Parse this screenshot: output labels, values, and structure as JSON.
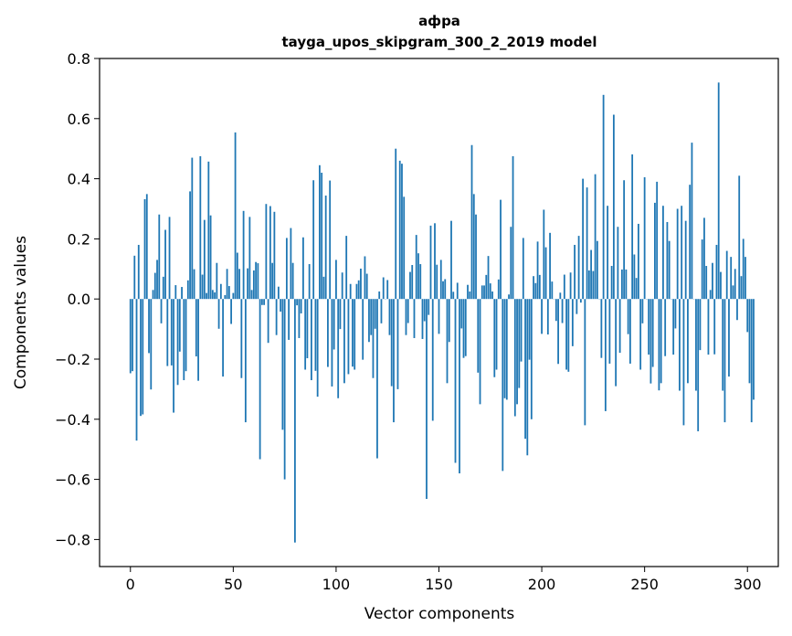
{
  "chart_data": {
    "type": "bar",
    "title": "афра",
    "subtitle": "tayga_upos_skipgram_300_2_2019 model",
    "xlabel": "Vector components",
    "ylabel": "Components values",
    "xlim": [
      -15,
      315
    ],
    "ylim": [
      -0.89,
      0.8
    ],
    "xticks": [
      0,
      50,
      100,
      150,
      200,
      250,
      300
    ],
    "xtick_labels": [
      "0",
      "50",
      "100",
      "150",
      "200",
      "250",
      "300"
    ],
    "yticks": [
      0.8,
      0.6,
      0.4,
      0.2,
      0.0,
      -0.2,
      -0.4,
      -0.6,
      -0.8
    ],
    "ytick_labels": [
      "0.8",
      "0.6",
      "0.4",
      "0.2",
      "0.0",
      "−0.2",
      "−0.4",
      "−0.6",
      "−0.8"
    ],
    "bar_color": "#1f77b4",
    "grid": false,
    "values": [
      -0.247,
      -0.24,
      0.144,
      -0.471,
      0.18,
      -0.389,
      -0.384,
      0.332,
      0.349,
      -0.18,
      -0.301,
      0.03,
      0.087,
      0.13,
      0.281,
      -0.081,
      0.074,
      0.23,
      -0.223,
      0.273,
      -0.221,
      -0.378,
      0.046,
      -0.286,
      -0.175,
      0.04,
      -0.27,
      -0.24,
      0.062,
      0.358,
      0.47,
      0.099,
      -0.191,
      -0.272,
      0.475,
      0.081,
      0.263,
      0.02,
      0.457,
      0.278,
      0.03,
      0.022,
      0.12,
      -0.099,
      0.05,
      -0.258,
      0.013,
      0.1,
      0.043,
      -0.083,
      0.02,
      0.554,
      0.154,
      0.1,
      -0.263,
      0.293,
      -0.41,
      0.102,
      0.273,
      0.03,
      0.095,
      0.123,
      0.119,
      -0.533,
      -0.02,
      -0.02,
      0.316,
      -0.146,
      0.309,
      0.12,
      0.29,
      -0.12,
      0.041,
      -0.042,
      -0.435,
      -0.6,
      0.203,
      -0.136,
      0.236,
      0.12,
      -0.81,
      -0.021,
      -0.13,
      -0.048,
      0.205,
      -0.235,
      -0.197,
      0.116,
      -0.27,
      0.395,
      -0.239,
      -0.325,
      0.445,
      0.42,
      0.074,
      0.344,
      -0.226,
      0.394,
      -0.291,
      -0.168,
      0.13,
      -0.33,
      -0.1,
      0.088,
      -0.28,
      0.21,
      -0.25,
      0.05,
      -0.225,
      -0.235,
      0.05,
      0.062,
      0.101,
      -0.202,
      0.142,
      0.084,
      -0.143,
      -0.12,
      -0.263,
      -0.099,
      -0.53,
      0.025,
      -0.081,
      0.072,
      0.0,
      0.063,
      -0.12,
      -0.29,
      -0.41,
      0.5,
      -0.3,
      0.46,
      0.45,
      0.34,
      -0.12,
      -0.08,
      0.09,
      0.113,
      -0.13,
      0.213,
      0.152,
      0.116,
      -0.133,
      -0.074,
      -0.665,
      -0.053,
      0.244,
      -0.405,
      0.252,
      0.114,
      -0.116,
      0.13,
      0.059,
      0.066,
      -0.28,
      -0.143,
      0.26,
      0.024,
      -0.545,
      0.054,
      -0.58,
      -0.098,
      -0.196,
      -0.19,
      0.047,
      0.025,
      0.512,
      0.349,
      0.281,
      -0.245,
      -0.35,
      0.045,
      0.045,
      0.08,
      0.143,
      0.052,
      0.025,
      -0.26,
      -0.235,
      0.065,
      0.33,
      -0.572,
      -0.33,
      -0.335,
      0.015,
      0.24,
      0.475,
      -0.39,
      -0.35,
      -0.296,
      -0.208,
      0.203,
      -0.465,
      -0.52,
      -0.202,
      -0.4,
      0.076,
      0.053,
      0.191,
      0.08,
      -0.116,
      0.297,
      0.172,
      -0.118,
      0.22,
      0.058,
      0.0,
      -0.073,
      -0.216,
      0.021,
      -0.08,
      0.081,
      -0.235,
      -0.242,
      0.088,
      -0.157,
      0.18,
      -0.05,
      0.21,
      -0.012,
      0.4,
      -0.42,
      0.371,
      0.095,
      0.163,
      0.093,
      0.415,
      0.193,
      0.0,
      -0.196,
      0.679,
      -0.373,
      0.31,
      -0.215,
      0.11,
      0.613,
      -0.29,
      0.24,
      -0.179,
      0.098,
      0.395,
      0.098,
      -0.117,
      -0.215,
      0.481,
      0.148,
      0.07,
      0.25,
      -0.235,
      -0.081,
      0.405,
      0.0,
      -0.185,
      -0.281,
      -0.226,
      0.32,
      0.39,
      -0.304,
      -0.28,
      0.31,
      -0.19,
      0.256,
      0.193,
      0.0,
      -0.185,
      -0.098,
      0.3,
      -0.305,
      0.31,
      -0.42,
      0.26,
      -0.28,
      0.38,
      0.52,
      0.0,
      -0.305,
      -0.44,
      -0.17,
      0.198,
      0.27,
      0.11,
      -0.185,
      0.03,
      0.12,
      -0.184,
      0.18,
      0.72,
      0.09,
      -0.305,
      -0.41,
      0.16,
      -0.258,
      0.14,
      0.045,
      0.1,
      -0.07,
      0.41,
      0.076,
      0.2,
      0.14,
      -0.11,
      -0.28,
      -0.41,
      -0.335
    ]
  }
}
